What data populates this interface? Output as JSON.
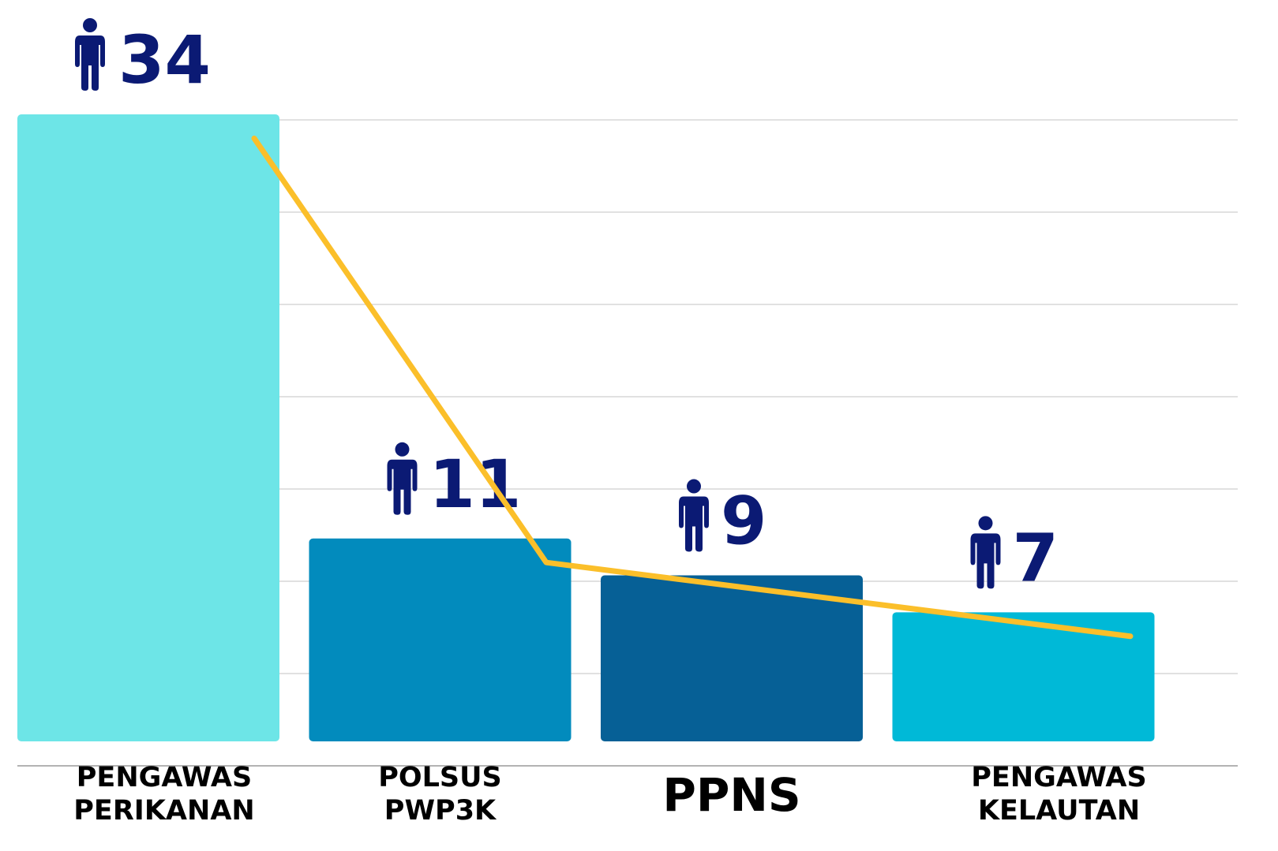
{
  "chart_data": {
    "type": "bar",
    "categories": [
      [
        "PENGAWAS",
        "PERIKANAN"
      ],
      [
        "POLSUS",
        "PWP3K"
      ],
      [
        "PPNS"
      ],
      [
        "PENGAWAS",
        "KELAUTAN"
      ]
    ],
    "values": [
      34,
      11,
      9,
      7
    ],
    "colors": [
      "#6de5e7",
      "#028bbd",
      "#066096",
      "#00b9d7"
    ],
    "label_color": "#0b1a74",
    "ylim": [
      0,
      34
    ],
    "line": {
      "color": "#fbbf2a",
      "values": [
        32.7,
        9.7,
        7.7,
        5.7
      ]
    },
    "grid": true
  }
}
